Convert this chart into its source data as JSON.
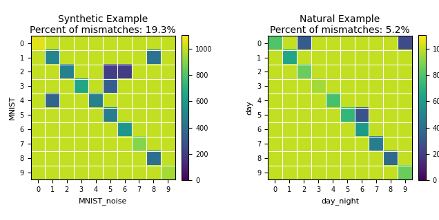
{
  "title1": "Synthetic Example",
  "subtitle1": "Percent of mismatches: 19.3%",
  "title2": "Natural Example",
  "subtitle2": "Percent of mismatches: 5.2%",
  "xlabel1": "MNIST_noise",
  "ylabel1": "MNIST",
  "xlabel2": "day_night",
  "ylabel2": "day",
  "tick_labels": [
    "0",
    "1",
    "2",
    "3",
    "4",
    "5",
    "6",
    "7",
    "8",
    "9"
  ],
  "cmap": "viridis",
  "vmin": 0,
  "vmax": 1100,
  "colorbar_ticks": [
    0,
    200,
    400,
    600,
    800,
    1000
  ],
  "matrix1": [
    [
      1050,
      1000,
      1000,
      1000,
      1000,
      1000,
      1000,
      1000,
      1000,
      1000
    ],
    [
      1000,
      500,
      1000,
      1000,
      1000,
      1000,
      1000,
      1000,
      420,
      1000
    ],
    [
      1000,
      1000,
      480,
      1000,
      1000,
      200,
      200,
      1000,
      1000,
      1000
    ],
    [
      1000,
      1000,
      1000,
      650,
      1000,
      330,
      1000,
      1000,
      1000,
      1000
    ],
    [
      1000,
      360,
      1000,
      1000,
      480,
      1000,
      1000,
      1000,
      1000,
      1000
    ],
    [
      1000,
      1000,
      1000,
      1000,
      1000,
      460,
      1000,
      1000,
      1000,
      1000
    ],
    [
      1000,
      1000,
      1000,
      1000,
      1000,
      1000,
      580,
      1000,
      1000,
      1000
    ],
    [
      1000,
      1000,
      1000,
      1000,
      1000,
      1000,
      1000,
      900,
      1000,
      1000
    ],
    [
      1000,
      1000,
      1000,
      1000,
      1000,
      1000,
      1000,
      1000,
      400,
      1000
    ],
    [
      1000,
      1000,
      1000,
      1000,
      1000,
      1000,
      1000,
      1000,
      1000,
      950
    ]
  ],
  "matrix2": [
    [
      800,
      1000,
      320,
      1000,
      1000,
      1000,
      1000,
      1000,
      1000,
      250
    ],
    [
      1000,
      650,
      1000,
      1000,
      1000,
      1000,
      1000,
      1000,
      1000,
      1000
    ],
    [
      1000,
      1000,
      850,
      1000,
      1000,
      1000,
      1000,
      1000,
      1000,
      1000
    ],
    [
      1000,
      1000,
      1000,
      950,
      1000,
      1000,
      1000,
      1000,
      1000,
      1000
    ],
    [
      1000,
      1000,
      1000,
      1000,
      780,
      1000,
      1000,
      1000,
      1000,
      1000
    ],
    [
      1000,
      1000,
      1000,
      1000,
      1000,
      730,
      280,
      1000,
      1000,
      1000
    ],
    [
      1000,
      1000,
      1000,
      1000,
      1000,
      1000,
      600,
      1000,
      1000,
      1000
    ],
    [
      1000,
      1000,
      1000,
      1000,
      1000,
      1000,
      1000,
      460,
      1000,
      1000
    ],
    [
      1000,
      1000,
      1000,
      1000,
      1000,
      1000,
      1000,
      1000,
      380,
      1000
    ],
    [
      1000,
      1000,
      1000,
      1000,
      1000,
      1000,
      1000,
      1000,
      1000,
      850
    ]
  ],
  "background_color": "#ffffff",
  "title_fontsize": 10,
  "label_fontsize": 8,
  "tick_fontsize": 7,
  "grid_color": "white",
  "grid_linewidth": 0.8
}
